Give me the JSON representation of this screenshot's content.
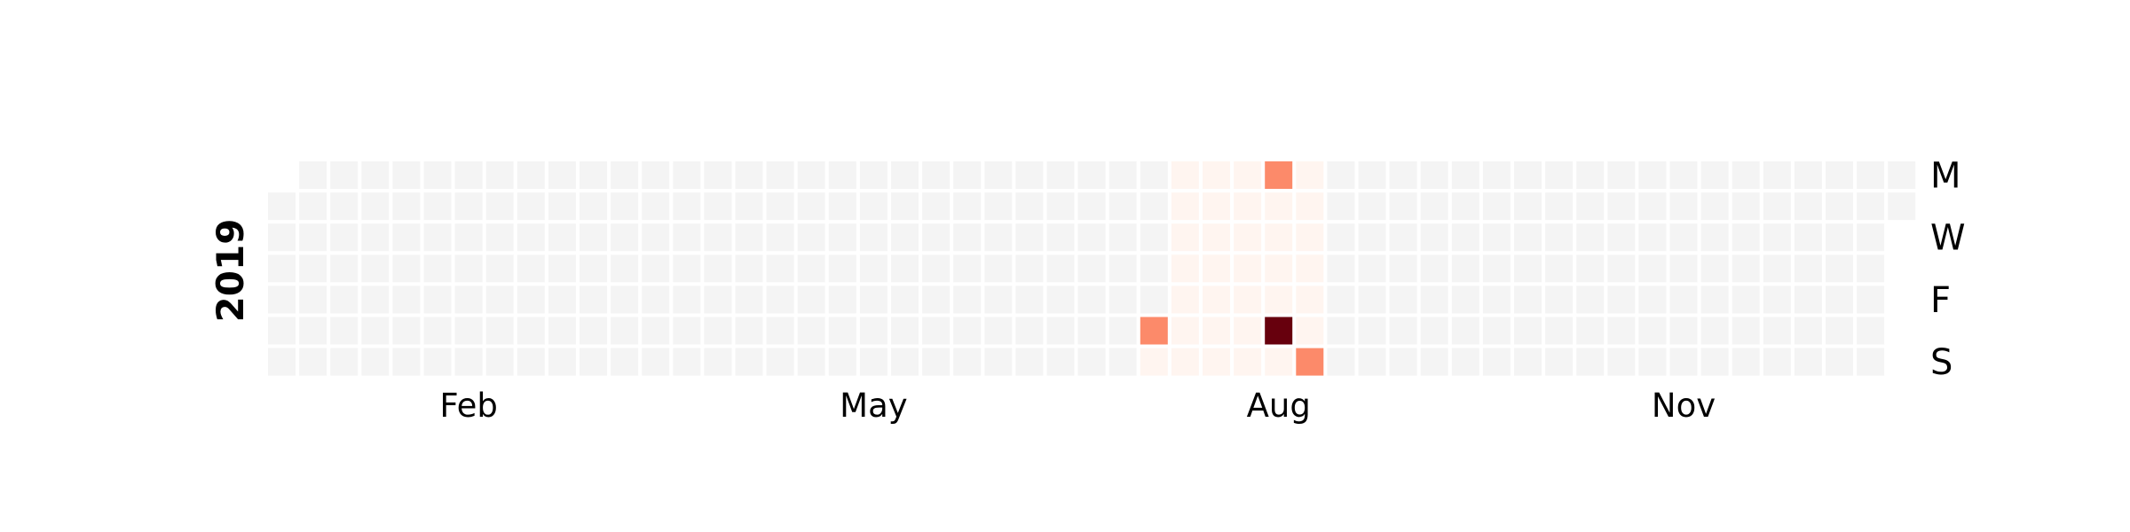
{
  "chart_data": {
    "type": "heatmap",
    "year_label": "2019",
    "month_labels": [
      "Feb",
      "May",
      "Aug",
      "Nov"
    ],
    "day_labels": [
      "M",
      "W",
      "F",
      "S"
    ],
    "x": "week of year (weeks start Monday; 2019-01-01 is a Tuesday, 2019-12-31 is a Tuesday)",
    "y": "day of week Mon..Sun",
    "empty_cell_color": "#f4f4f4",
    "palette": {
      "low": "#fff5f0",
      "mid": "#fc8a6a",
      "high": "#67000d"
    },
    "default_value": 0,
    "values": [
      {
        "date": "2019-07-20",
        "value": 0.5
      },
      {
        "date": "2019-07-21",
        "value": 0.05
      },
      {
        "date": "2019-07-22",
        "value": 0.05
      },
      {
        "date": "2019-07-23",
        "value": 0.05
      },
      {
        "date": "2019-07-24",
        "value": 0.05
      },
      {
        "date": "2019-07-25",
        "value": 0.05
      },
      {
        "date": "2019-07-26",
        "value": 0.05
      },
      {
        "date": "2019-07-27",
        "value": 0.05
      },
      {
        "date": "2019-07-28",
        "value": 0.05
      },
      {
        "date": "2019-07-29",
        "value": 0.05
      },
      {
        "date": "2019-07-30",
        "value": 0.05
      },
      {
        "date": "2019-07-31",
        "value": 0.05
      },
      {
        "date": "2019-08-01",
        "value": 0.05
      },
      {
        "date": "2019-08-02",
        "value": 0.05
      },
      {
        "date": "2019-08-03",
        "value": 0.05
      },
      {
        "date": "2019-08-04",
        "value": 0.05
      },
      {
        "date": "2019-08-05",
        "value": 0.05
      },
      {
        "date": "2019-08-06",
        "value": 0.05
      },
      {
        "date": "2019-08-07",
        "value": 0.05
      },
      {
        "date": "2019-08-08",
        "value": 0.05
      },
      {
        "date": "2019-08-09",
        "value": 0.05
      },
      {
        "date": "2019-08-10",
        "value": 0.05
      },
      {
        "date": "2019-08-11",
        "value": 0.05
      },
      {
        "date": "2019-08-12",
        "value": 0.5
      },
      {
        "date": "2019-08-13",
        "value": 0.05
      },
      {
        "date": "2019-08-14",
        "value": 0.05
      },
      {
        "date": "2019-08-15",
        "value": 0.05
      },
      {
        "date": "2019-08-16",
        "value": 0.05
      },
      {
        "date": "2019-08-17",
        "value": 1.0
      },
      {
        "date": "2019-08-18",
        "value": 0.05
      },
      {
        "date": "2019-08-19",
        "value": 0.05
      },
      {
        "date": "2019-08-20",
        "value": 0.05
      },
      {
        "date": "2019-08-21",
        "value": 0.05
      },
      {
        "date": "2019-08-22",
        "value": 0.05
      },
      {
        "date": "2019-08-23",
        "value": 0.05
      },
      {
        "date": "2019-08-24",
        "value": 0.05
      },
      {
        "date": "2019-08-25",
        "value": 0.5
      }
    ]
  }
}
